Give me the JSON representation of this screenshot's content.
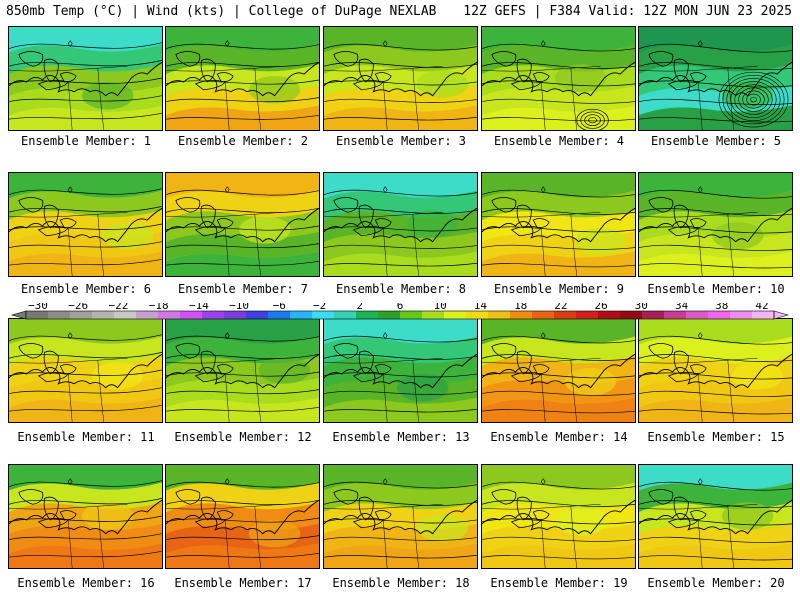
{
  "header": {
    "left": "850mb Temp (°C) | Wind (kts) | College of DuPage NEXLAB",
    "right": "12Z GEFS | F384 Valid: 12Z MON JUN 23 2025"
  },
  "colorbar": {
    "labels": [
      "−30",
      "−26",
      "−22",
      "−18",
      "−14",
      "−10",
      "−6",
      "−2",
      "2",
      "6",
      "10",
      "14",
      "18",
      "22",
      "26",
      "30",
      "34",
      "38",
      "42"
    ],
    "colors": [
      "#787878",
      "#8c8c8c",
      "#a0a0a0",
      "#b4b4b4",
      "#c8c8c8",
      "#c8a0d2",
      "#d278e6",
      "#d250fa",
      "#a040f0",
      "#7a3cdc",
      "#4040e6",
      "#1e78f0",
      "#28b4fa",
      "#3cdcf0",
      "#32d2b4",
      "#1eb450",
      "#32a028",
      "#64c814",
      "#aadc1e",
      "#dcf01e",
      "#f0dc14",
      "#f0be14",
      "#f08c14",
      "#e66414",
      "#dc3c14",
      "#d21e1e",
      "#b40a14",
      "#960a14",
      "#aa1e5a",
      "#c83c96",
      "#dc5ac8",
      "#f064f0",
      "#f08cf0",
      "#f5b4f5"
    ]
  },
  "panels": [
    {
      "label": "Ensemble Member: 1",
      "fill": [
        "#3cdcc8",
        "#32c878",
        "#5ab428",
        "#8cc81e",
        "#aadc1e",
        "#c8e61e"
      ]
    },
    {
      "label": "Ensemble Member: 2",
      "fill": [
        "#3cb43c",
        "#5ab428",
        "#8cc81e",
        "#c8e61e",
        "#f0d214",
        "#f0a514"
      ]
    },
    {
      "label": "Ensemble Member: 3",
      "fill": [
        "#5ab428",
        "#8cc81e",
        "#aadc1e",
        "#c8e61e",
        "#f0d214",
        "#f0b414"
      ]
    },
    {
      "label": "Ensemble Member: 4",
      "fill": [
        "#3cb43c",
        "#5ab428",
        "#8cc81e",
        "#aadc1e",
        "#c8e61e",
        "#dcf01e"
      ]
    },
    {
      "label": "Ensemble Member: 5",
      "fill": [
        "#1e9650",
        "#28a046",
        "#3cb43c",
        "#32c878",
        "#3cdcc8",
        "#28a046"
      ]
    },
    {
      "label": "Ensemble Member: 6",
      "fill": [
        "#3cb43c",
        "#8cc81e",
        "#c8e61e",
        "#f0d214",
        "#f0c814",
        "#f0b414"
      ]
    },
    {
      "label": "Ensemble Member: 7",
      "fill": [
        "#f0b414",
        "#f0d214",
        "#c8e61e",
        "#8cc81e",
        "#5ab428",
        "#3cb43c"
      ]
    },
    {
      "label": "Ensemble Member: 8",
      "fill": [
        "#3cdcc8",
        "#32c878",
        "#3cb43c",
        "#5ab428",
        "#8cc81e",
        "#aadc1e"
      ]
    },
    {
      "label": "Ensemble Member: 9",
      "fill": [
        "#5ab428",
        "#8cc81e",
        "#c8e61e",
        "#f0e614",
        "#f0d214",
        "#f0b414"
      ]
    },
    {
      "label": "Ensemble Member: 10",
      "fill": [
        "#3cb43c",
        "#5ab428",
        "#8cc81e",
        "#aadc1e",
        "#c8e61e",
        "#dcf01e"
      ]
    },
    {
      "label": "Ensemble Member: 11",
      "fill": [
        "#8cc81e",
        "#c8e61e",
        "#f0e614",
        "#f0d214",
        "#f0c814",
        "#f0b414"
      ]
    },
    {
      "label": "Ensemble Member: 12",
      "fill": [
        "#28a046",
        "#3cb43c",
        "#5ab428",
        "#8cc81e",
        "#aadc1e",
        "#c8e61e"
      ]
    },
    {
      "label": "Ensemble Member: 13",
      "fill": [
        "#3cdcc8",
        "#32c878",
        "#28a046",
        "#3cb43c",
        "#5ab428",
        "#8cc81e"
      ]
    },
    {
      "label": "Ensemble Member: 14",
      "fill": [
        "#5ab428",
        "#c8e61e",
        "#f0d214",
        "#f0b414",
        "#f09614",
        "#f08214"
      ]
    },
    {
      "label": "Ensemble Member: 15",
      "fill": [
        "#aadc1e",
        "#dcf01e",
        "#f0e614",
        "#f0d214",
        "#f0c814",
        "#f0b414"
      ]
    },
    {
      "label": "Ensemble Member: 16",
      "fill": [
        "#3cb43c",
        "#c8e61e",
        "#f0c814",
        "#f0a514",
        "#f08c14",
        "#f07814"
      ]
    },
    {
      "label": "Ensemble Member: 17",
      "fill": [
        "#5ab428",
        "#f0d214",
        "#f0a514",
        "#f08c14",
        "#e66414",
        "#f07814"
      ]
    },
    {
      "label": "Ensemble Member: 18",
      "fill": [
        "#5ab428",
        "#8cc81e",
        "#c8e61e",
        "#f0d214",
        "#f0b414",
        "#f0a514"
      ]
    },
    {
      "label": "Ensemble Member: 19",
      "fill": [
        "#8cc81e",
        "#c8e61e",
        "#dcf01e",
        "#f0e614",
        "#f0d214",
        "#f0c814"
      ]
    },
    {
      "label": "Ensemble Member: 20",
      "fill": [
        "#3cdcc8",
        "#3cb43c",
        "#8cc81e",
        "#c8e61e",
        "#f0d214",
        "#f0c814"
      ]
    }
  ]
}
